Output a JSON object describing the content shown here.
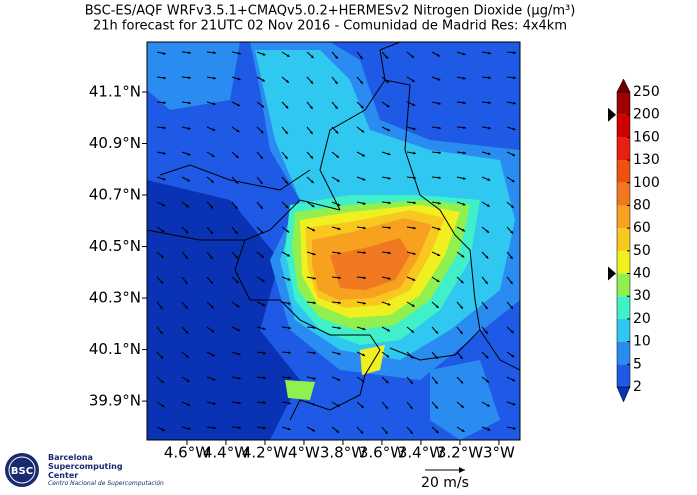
{
  "header": {
    "title": "BSC-ES/AQF WRFv3.5.1+CMAQv5.0.2+HERMESv2 Nitrogen Dioxide (µg/m³)",
    "subtitle": "21h forecast for 21UTC 02 Nov 2016 - Comunidad de Madrid Res: 4x4km"
  },
  "map": {
    "ylim": [
      39.749,
      41.294
    ],
    "xlim": [
      -4.805,
      -2.892
    ],
    "yticks": [
      {
        "value": 41.1,
        "label": "41.1°N"
      },
      {
        "value": 40.9,
        "label": "40.9°N"
      },
      {
        "value": 40.7,
        "label": "40.7°N"
      },
      {
        "value": 40.5,
        "label": "40.5°N"
      },
      {
        "value": 40.3,
        "label": "40.3°N"
      },
      {
        "value": 40.1,
        "label": "40.1°N"
      },
      {
        "value": 39.9,
        "label": "39.9°N"
      }
    ],
    "xticks": [
      {
        "value": -4.6,
        "label": "4.6°W"
      },
      {
        "value": -4.4,
        "label": "4.4°W"
      },
      {
        "value": -4.2,
        "label": "4.2°W"
      },
      {
        "value": -4.0,
        "label": "4°W"
      },
      {
        "value": -3.8,
        "label": "3.8°W"
      },
      {
        "value": -3.6,
        "label": "3.6°W"
      },
      {
        "value": -3.4,
        "label": "3.4°W"
      },
      {
        "value": -3.2,
        "label": "3.2°W"
      },
      {
        "value": -3.0,
        "label": "3°W"
      }
    ],
    "wind_scale": "20 m/s"
  },
  "colorbar": {
    "ticks": [
      2,
      5,
      10,
      20,
      30,
      40,
      50,
      60,
      80,
      100,
      130,
      160,
      200,
      250
    ],
    "colors": [
      "#0a32b4",
      "#1e5ae6",
      "#2a8cf0",
      "#30c8f0",
      "#40f0c8",
      "#90f050",
      "#f0f020",
      "#f8c820",
      "#f8a020",
      "#f07820",
      "#f05010",
      "#e82010",
      "#d00000",
      "#a00000",
      "#700000"
    ],
    "markers": [
      200,
      40
    ]
  },
  "logo": {
    "short": "BSC",
    "name": "Barcelona Supercomputing Center",
    "subname": "Centro Nacional de Supercomputación"
  }
}
